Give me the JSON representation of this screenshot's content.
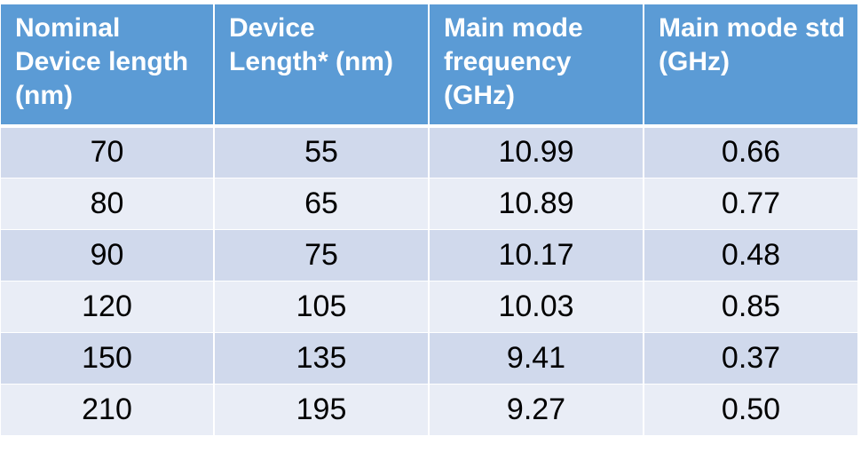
{
  "table": {
    "headers": [
      "Nominal Device length (nm)",
      "Device Length* (nm)",
      "Main mode frequency (GHz)",
      "Main mode std (GHz)"
    ],
    "rows": [
      [
        "70",
        "55",
        "10.99",
        "0.66"
      ],
      [
        "80",
        "65",
        "10.89",
        "0.77"
      ],
      [
        "90",
        "75",
        "10.17",
        "0.48"
      ],
      [
        "120",
        "105",
        "10.03",
        "0.85"
      ],
      [
        "150",
        "135",
        "9.41",
        "0.37"
      ],
      [
        "210",
        "195",
        "9.27",
        "0.50"
      ]
    ],
    "colors": {
      "header_bg": "#5b9bd5",
      "header_text": "#ffffff",
      "row_odd_bg": "#d0d9ec",
      "row_even_bg": "#e9edf6"
    }
  }
}
